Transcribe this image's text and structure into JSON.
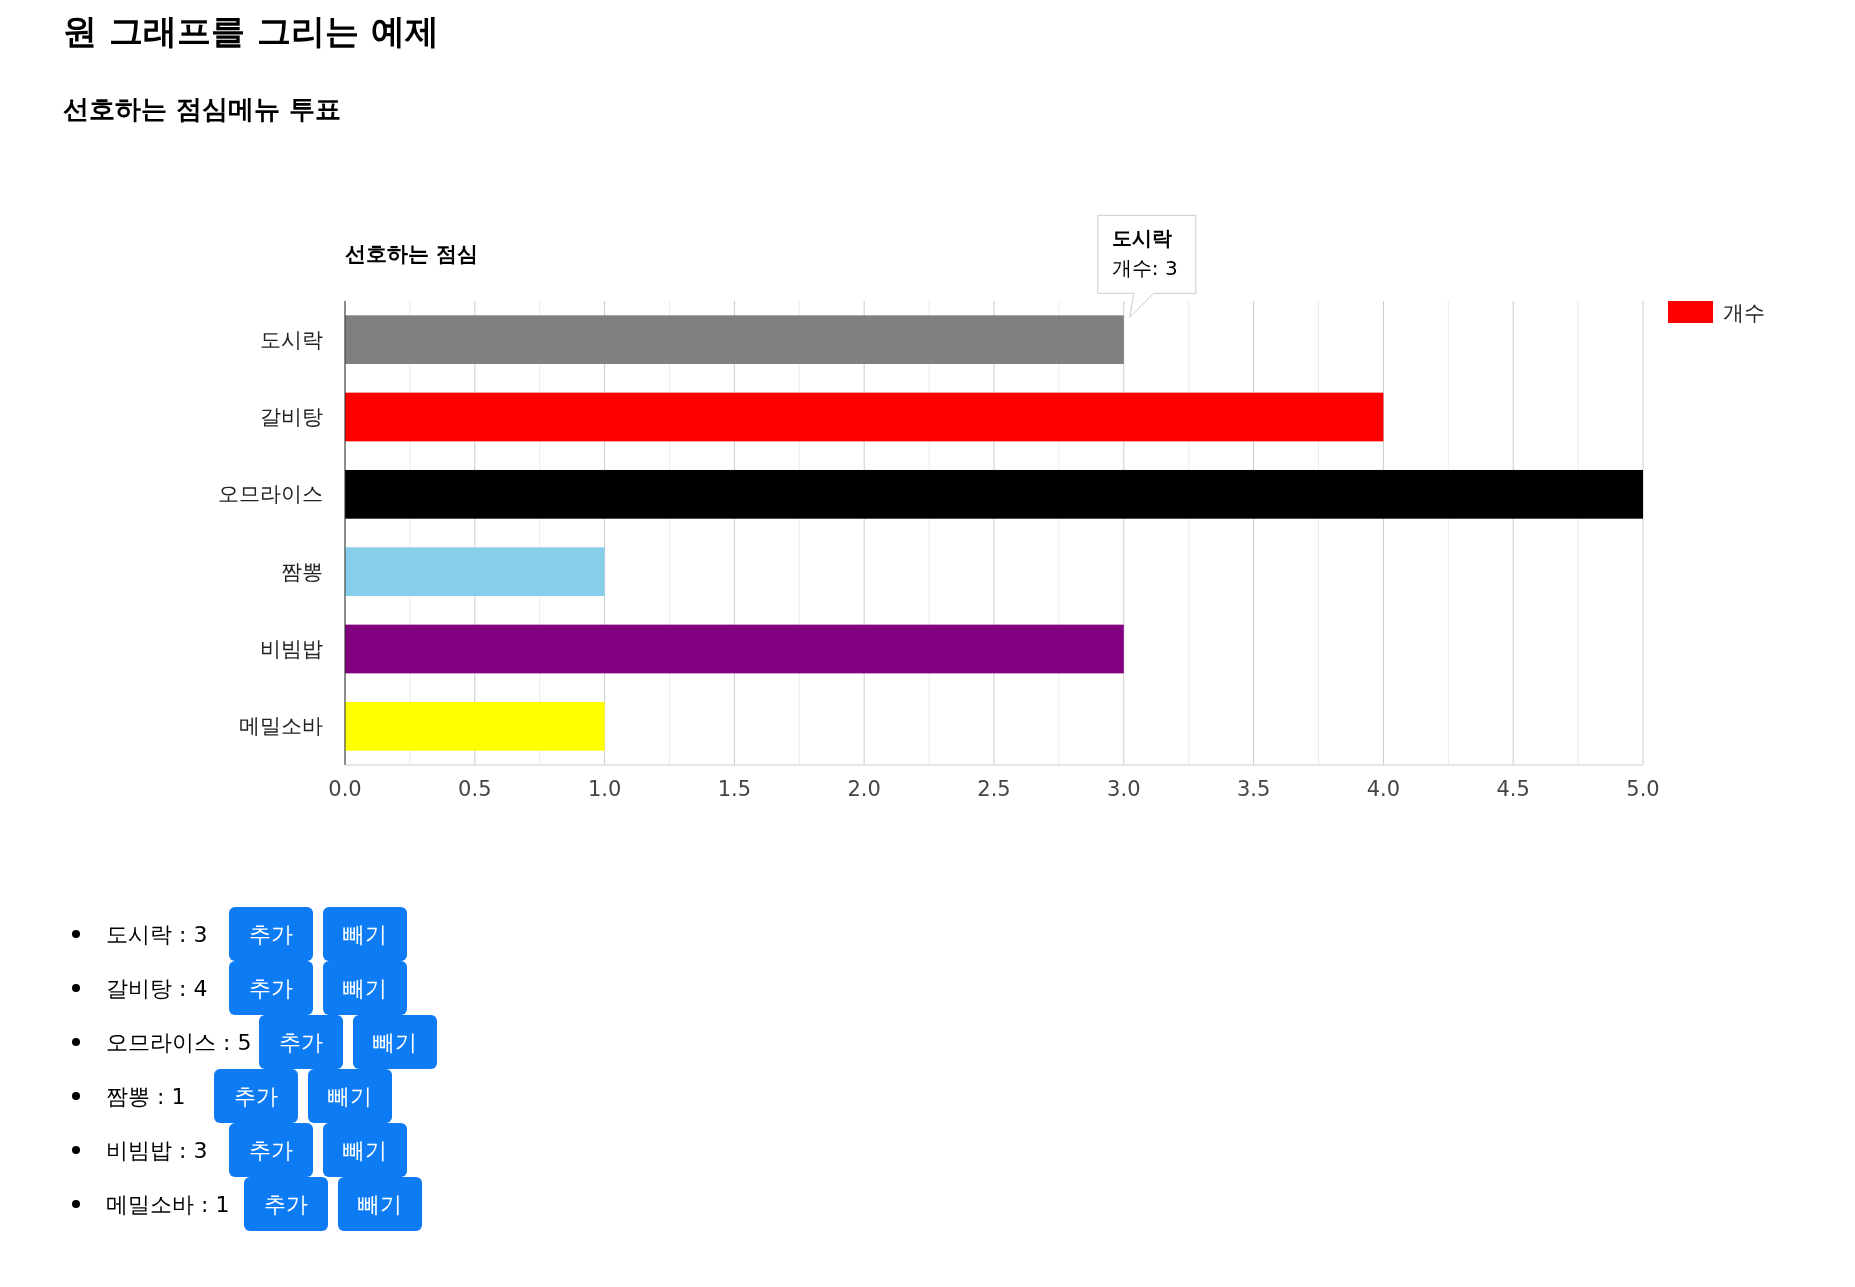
{
  "chart_data": {
    "type": "bar",
    "orientation": "horizontal",
    "title": "선호하는 점심",
    "categories": [
      "도시락",
      "갈비탕",
      "오므라이스",
      "짬뽕",
      "비빔밥",
      "메밀소바"
    ],
    "series": [
      {
        "name": "개수",
        "color": "#ff0000",
        "colors": [
          "#808080",
          "#ff0000",
          "#000000",
          "#87ceeb",
          "#800080",
          "#ffff00"
        ],
        "values": [
          3,
          4,
          5,
          1,
          3,
          1
        ]
      }
    ],
    "xlim": [
      0,
      5
    ],
    "xticks": [
      {
        "value": 0,
        "label": "0.0"
      },
      {
        "value": 0.25,
        "label": null
      },
      {
        "value": 0.5,
        "label": "0.5"
      },
      {
        "value": 0.75,
        "label": null
      },
      {
        "value": 1,
        "label": "1.0"
      },
      {
        "value": 1.25,
        "label": null
      },
      {
        "value": 1.5,
        "label": "1.5"
      },
      {
        "value": 1.75,
        "label": null
      },
      {
        "value": 2,
        "label": "2.0"
      },
      {
        "value": 2.25,
        "label": null
      },
      {
        "value": 2.5,
        "label": "2.5"
      },
      {
        "value": 2.75,
        "label": null
      },
      {
        "value": 3,
        "label": "3.0"
      },
      {
        "value": 3.25,
        "label": null
      },
      {
        "value": 3.5,
        "label": "3.5"
      },
      {
        "value": 3.75,
        "label": null
      },
      {
        "value": 4,
        "label": "4.0"
      },
      {
        "value": 4.25,
        "label": null
      },
      {
        "value": 4.5,
        "label": "4.5"
      },
      {
        "value": 4.75,
        "label": null
      },
      {
        "value": 5,
        "label": "5.0"
      }
    ],
    "grid": "x",
    "legend": "top right",
    "annotations": [
      "원 그래프를 그리는 예제",
      "선호하는 점심메뉴 투표",
      "도시락",
      "개수: 3",
      "추가",
      "빼기",
      "도시락 : 3",
      "갈비탕 : 4",
      "오므라이스 : 5",
      "짬뽕 : 1",
      "비빔밥 : 3",
      "메밀소바 : 1"
    ]
  }
}
